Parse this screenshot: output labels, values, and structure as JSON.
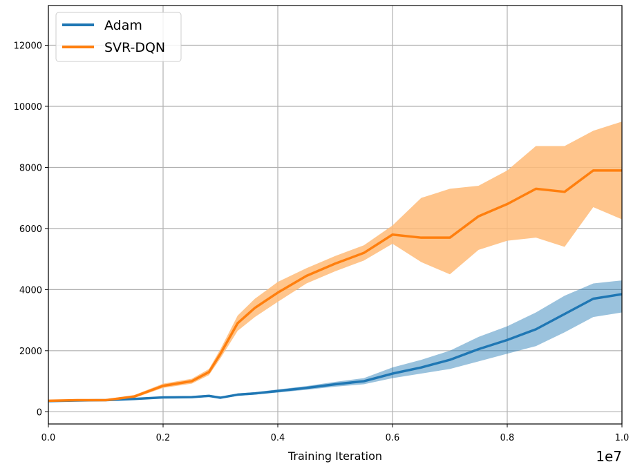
{
  "chart_data": {
    "type": "line",
    "title": "",
    "xlabel": "Training Iteration",
    "ylabel": "",
    "x_offset_label": "1e7",
    "xlim": [
      0.0,
      1.0
    ],
    "ylim": [
      -400,
      13300
    ],
    "x_ticks": [
      0.0,
      0.2,
      0.4,
      0.6,
      0.8,
      1.0
    ],
    "x_tick_labels": [
      "0.0",
      "0.2",
      "0.4",
      "0.6",
      "0.8",
      "1.0"
    ],
    "y_ticks": [
      0,
      2000,
      4000,
      6000,
      8000,
      10000,
      12000
    ],
    "y_tick_labels": [
      "0",
      "2000",
      "4000",
      "6000",
      "8000",
      "10000",
      "12000"
    ],
    "grid": true,
    "legend_position": "top-left",
    "x": [
      0.0,
      0.05,
      0.1,
      0.15,
      0.2,
      0.25,
      0.28,
      0.3,
      0.33,
      0.36,
      0.4,
      0.45,
      0.5,
      0.55,
      0.6,
      0.65,
      0.7,
      0.75,
      0.8,
      0.85,
      0.9,
      0.95,
      1.0
    ],
    "series": [
      {
        "name": "Adam",
        "color": "#1f77b4",
        "band_color": "#1f77b4",
        "values": [
          350,
          370,
          380,
          420,
          470,
          480,
          520,
          460,
          560,
          600,
          680,
          780,
          900,
          1000,
          1250,
          1450,
          1700,
          2050,
          2350,
          2700,
          3200,
          3700,
          3850
        ],
        "lower": [
          320,
          340,
          350,
          390,
          440,
          450,
          480,
          430,
          520,
          560,
          630,
          720,
          820,
          900,
          1100,
          1250,
          1400,
          1650,
          1900,
          2150,
          2600,
          3100,
          3250
        ],
        "upper": [
          380,
          400,
          410,
          450,
          500,
          510,
          560,
          490,
          600,
          640,
          730,
          840,
          980,
          1100,
          1450,
          1700,
          2000,
          2450,
          2800,
          3250,
          3800,
          4200,
          4300
        ]
      },
      {
        "name": "SVR-DQN",
        "color": "#ff7f0e",
        "band_color": "#ffbb78",
        "values": [
          360,
          380,
          380,
          500,
          850,
          1000,
          1300,
          1900,
          2900,
          3400,
          3900,
          4450,
          4850,
          5200,
          5800,
          5700,
          5700,
          6400,
          6800,
          7300,
          7200,
          7900,
          7900
        ],
        "lower": [
          330,
          350,
          350,
          450,
          780,
          920,
          1200,
          1750,
          2650,
          3100,
          3600,
          4200,
          4600,
          4950,
          5500,
          4900,
          4500,
          5300,
          5600,
          5700,
          5400,
          6700,
          6300
        ],
        "upper": [
          390,
          410,
          410,
          550,
          920,
          1080,
          1400,
          2050,
          3150,
          3700,
          4250,
          4700,
          5100,
          5450,
          6100,
          7000,
          7300,
          7400,
          7900,
          8700,
          8700,
          9200,
          9500
        ]
      }
    ]
  }
}
